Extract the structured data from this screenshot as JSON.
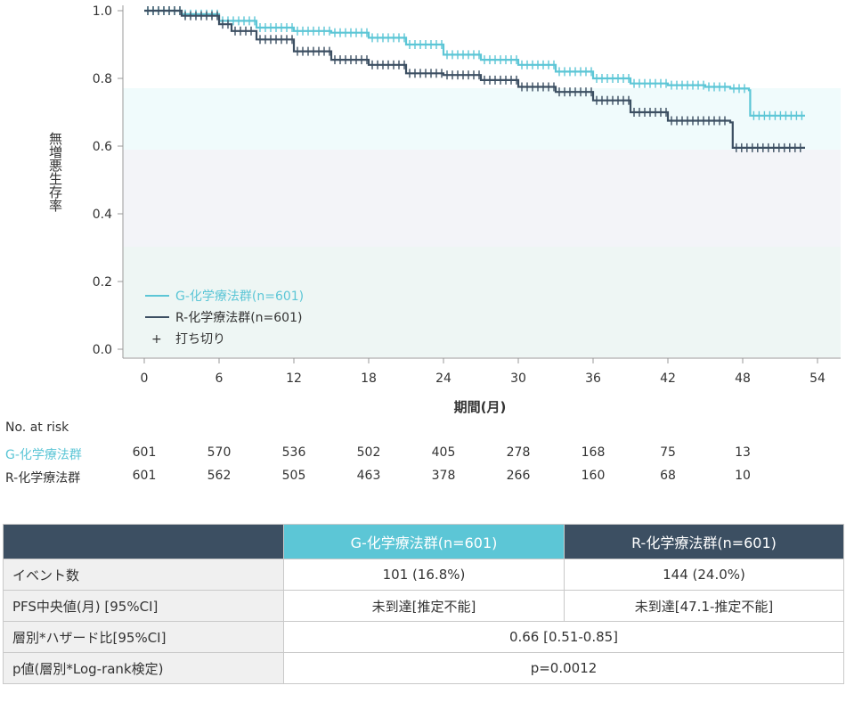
{
  "chart_data": {
    "type": "line",
    "ylabel": "無増悪生存率",
    "xlabel": "期間(月)",
    "xlim": [
      0,
      54
    ],
    "ylim": [
      0.0,
      1.0
    ],
    "x_ticks": [
      "0",
      "6",
      "12",
      "18",
      "24",
      "30",
      "36",
      "42",
      "48",
      "54"
    ],
    "y_ticks": [
      "0.0",
      "0.2",
      "0.4",
      "0.6",
      "0.8",
      "1.0"
    ],
    "legend_placement": "bottom-left",
    "censor_legend": "打ち切り",
    "series": [
      {
        "name": "G-化学療法群(n=601)",
        "color": "#5cc6d6",
        "x": [
          0,
          3,
          6,
          9,
          12,
          15,
          18,
          21,
          24,
          27,
          30,
          33,
          36,
          39,
          42,
          45,
          47,
          48.5,
          48.6,
          53
        ],
        "y": [
          1.0,
          0.99,
          0.97,
          0.95,
          0.94,
          0.935,
          0.92,
          0.9,
          0.87,
          0.855,
          0.84,
          0.82,
          0.8,
          0.785,
          0.78,
          0.775,
          0.77,
          0.765,
          0.69,
          0.69
        ]
      },
      {
        "name": "R-化学療法群(n=601)",
        "color": "#3c4f62",
        "x": [
          0,
          3,
          6,
          7,
          9,
          12,
          15,
          18,
          21,
          24,
          27,
          30,
          33,
          36,
          39,
          42,
          45,
          47,
          47.2,
          53
        ],
        "y": [
          1.0,
          0.985,
          0.96,
          0.94,
          0.915,
          0.88,
          0.855,
          0.84,
          0.815,
          0.81,
          0.795,
          0.775,
          0.76,
          0.735,
          0.7,
          0.675,
          0.675,
          0.67,
          0.595,
          0.595
        ]
      }
    ]
  },
  "risk_table": {
    "header": "No. at risk",
    "times": [
      0,
      6,
      12,
      18,
      24,
      30,
      36,
      42,
      48
    ],
    "rows": [
      {
        "label": "G-化学療法群",
        "color": "#5cc6d6",
        "values": [
          "601",
          "570",
          "536",
          "502",
          "405",
          "278",
          "168",
          "75",
          "13"
        ]
      },
      {
        "label": "R-化学療法群",
        "color": "#333333",
        "values": [
          "601",
          "562",
          "505",
          "463",
          "378",
          "266",
          "160",
          "68",
          "10"
        ]
      }
    ]
  },
  "summary": {
    "col_g": "G-化学療法群(n=601)",
    "col_r": "R-化学療法群(n=601)",
    "row1_label": "イベント数",
    "row1_g": "101 (16.8%)",
    "row1_r": "144 (24.0%)",
    "row2_label": "PFS中央値(月) [95%CI]",
    "row2_g": "未到達[推定不能]",
    "row2_r": "未到達[47.1-推定不能]",
    "row3_label": "層別*ハザード比[95%CI]",
    "row3_value": "0.66 [0.51-0.85]",
    "row4_label": "p値(層別*Log-rank検定)",
    "row4_value": "p=0.0012"
  }
}
